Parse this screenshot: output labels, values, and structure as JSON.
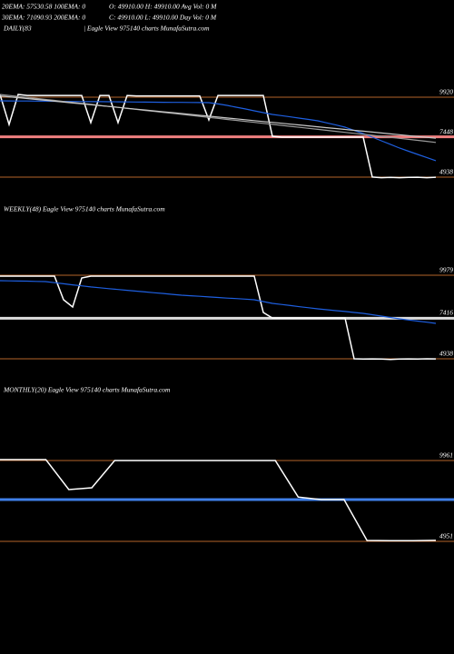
{
  "header": {
    "line1a": "20EMA: 57530.58   100EMA: 0",
    "line1b": "O: 49910.00   H: 49910.00   Avg Vol: 0   M",
    "line2a": "30EMA: 71090.93   200EMA: 0",
    "line2b": "C: 49910.00   L: 49910.00   Day Vol: 0   M"
  },
  "chart_data": [
    {
      "type": "line",
      "title": "DAILY(83",
      "subtitle": "| Eagle  View  975140  charts MunafaSutra.com",
      "ylim": [
        4087,
        10883
      ],
      "yticks": [
        9920,
        7448,
        4938
      ],
      "levels": [
        {
          "value": 7448,
          "color": "#f08080"
        }
      ],
      "series": [
        {
          "color": "#ffffff",
          "values": [
            10090,
            8220,
            10090,
            10030,
            10030,
            10030,
            10030,
            10030,
            10030,
            10030,
            8335,
            10030,
            10030,
            8335,
            10030,
            10000,
            10000,
            10000,
            10000,
            10000,
            10000,
            10000,
            10000,
            8505,
            10030,
            10030,
            10030,
            10030,
            10030,
            10030,
            7485,
            7430,
            7430,
            7430,
            7430,
            7430,
            7430,
            7430,
            7430,
            7430,
            7430,
            4940,
            4900,
            4920,
            4900,
            4920,
            4930,
            4900,
            4930
          ]
        },
        {
          "color": "#1e5fe0",
          "values": [
            9695,
            9690,
            9685,
            9680,
            9675,
            9670,
            9665,
            9660,
            9655,
            9650,
            9645,
            9640,
            9635,
            9630,
            9625,
            9620,
            9615,
            9610,
            9605,
            9600,
            9595,
            9590,
            9585,
            9580,
            9500,
            9410,
            9300,
            9190,
            9070,
            8960,
            8845,
            8770,
            8690,
            8610,
            8530,
            8450,
            8320,
            8190,
            8050,
            7850,
            7655,
            7430,
            7200,
            6980,
            6750,
            6550,
            6355,
            6160,
            5960
          ]
        },
        {
          "color": "#9a9a9a",
          "values": [
            10090,
            10030,
            9965,
            9905,
            9840,
            9780,
            9720,
            9655,
            9595,
            9530,
            9470,
            9405,
            9345,
            9285,
            9220,
            9160,
            9095,
            9035,
            8970,
            8910,
            8850,
            8785,
            8725,
            8660,
            8600,
            8535,
            8475,
            8415,
            8350,
            8290,
            8225,
            8165,
            8100,
            8040,
            7980,
            7915,
            7855,
            7790,
            7730,
            7665,
            7605,
            7545,
            7480,
            7420,
            7355,
            7295,
            7230,
            7170,
            7100
          ]
        },
        {
          "color": "#c8c8c8",
          "values": [
            10000,
            9945,
            9890,
            9835,
            9780,
            9725,
            9670,
            9615,
            9560,
            9505,
            9450,
            9395,
            9340,
            9285,
            9230,
            9175,
            9120,
            9065,
            9010,
            8955,
            8900,
            8845,
            8790,
            8735,
            8680,
            8625,
            8570,
            8515,
            8460,
            8405,
            8350,
            8295,
            8240,
            8185,
            8130,
            8075,
            8020,
            7965,
            7910,
            7855,
            7800,
            7745,
            7690,
            7635,
            7580,
            7525,
            7470,
            7415,
            7360
          ]
        }
      ]
    },
    {
      "type": "line",
      "title": "WEEKLY(48) Eagle  View  975140  charts MunafaSutra.com",
      "ylim": [
        4116,
        10965
      ],
      "yticks": [
        9979,
        7416,
        4938
      ],
      "levels": [
        {
          "value": 7380,
          "color": "#dddddd"
        }
      ],
      "series": [
        {
          "color": "#ffffff",
          "values": [
            9925,
            9925,
            9925,
            9925,
            9925,
            9925,
            9925,
            8500,
            8060,
            9815,
            9925,
            9925,
            9925,
            9925,
            9925,
            9925,
            9925,
            9925,
            9925,
            9925,
            9925,
            9925,
            9925,
            9925,
            9925,
            9925,
            9925,
            9925,
            9925,
            7730,
            7400,
            7400,
            7400,
            7400,
            7400,
            7400,
            7400,
            7400,
            7400,
            4938,
            4920,
            4930,
            4920,
            4900,
            4920,
            4930,
            4920,
            4940,
            4930
          ]
        },
        {
          "color": "#1e5fe0",
          "values": [
            9650,
            9640,
            9630,
            9620,
            9605,
            9595,
            9530,
            9465,
            9400,
            9335,
            9270,
            9220,
            9170,
            9120,
            9070,
            9020,
            8970,
            8920,
            8875,
            8825,
            8775,
            8740,
            8705,
            8670,
            8635,
            8600,
            8570,
            8535,
            8500,
            8390,
            8280,
            8215,
            8150,
            8080,
            8015,
            7950,
            7895,
            7840,
            7790,
            7735,
            7680,
            7595,
            7515,
            7430,
            7350,
            7280,
            7210,
            7145,
            7075
          ]
        }
      ]
    },
    {
      "type": "line",
      "title": "MONTHLY(20) Eagle  View  975140  charts MunafaSutra.com",
      "ylim": [
        3599,
        10918
      ],
      "yticks": [
        9961,
        4951
      ],
      "levels": [
        {
          "value": 7540,
          "color": "#3f7fe8"
        }
      ],
      "series": [
        {
          "color": "#ffffff",
          "values": [
            10017,
            10017,
            10017,
            8160,
            8270,
            9961,
            9961,
            9961,
            9961,
            9961,
            9961,
            9961,
            9961,
            7700,
            7540,
            7540,
            5007,
            4990,
            4990,
            5010
          ]
        }
      ]
    }
  ]
}
